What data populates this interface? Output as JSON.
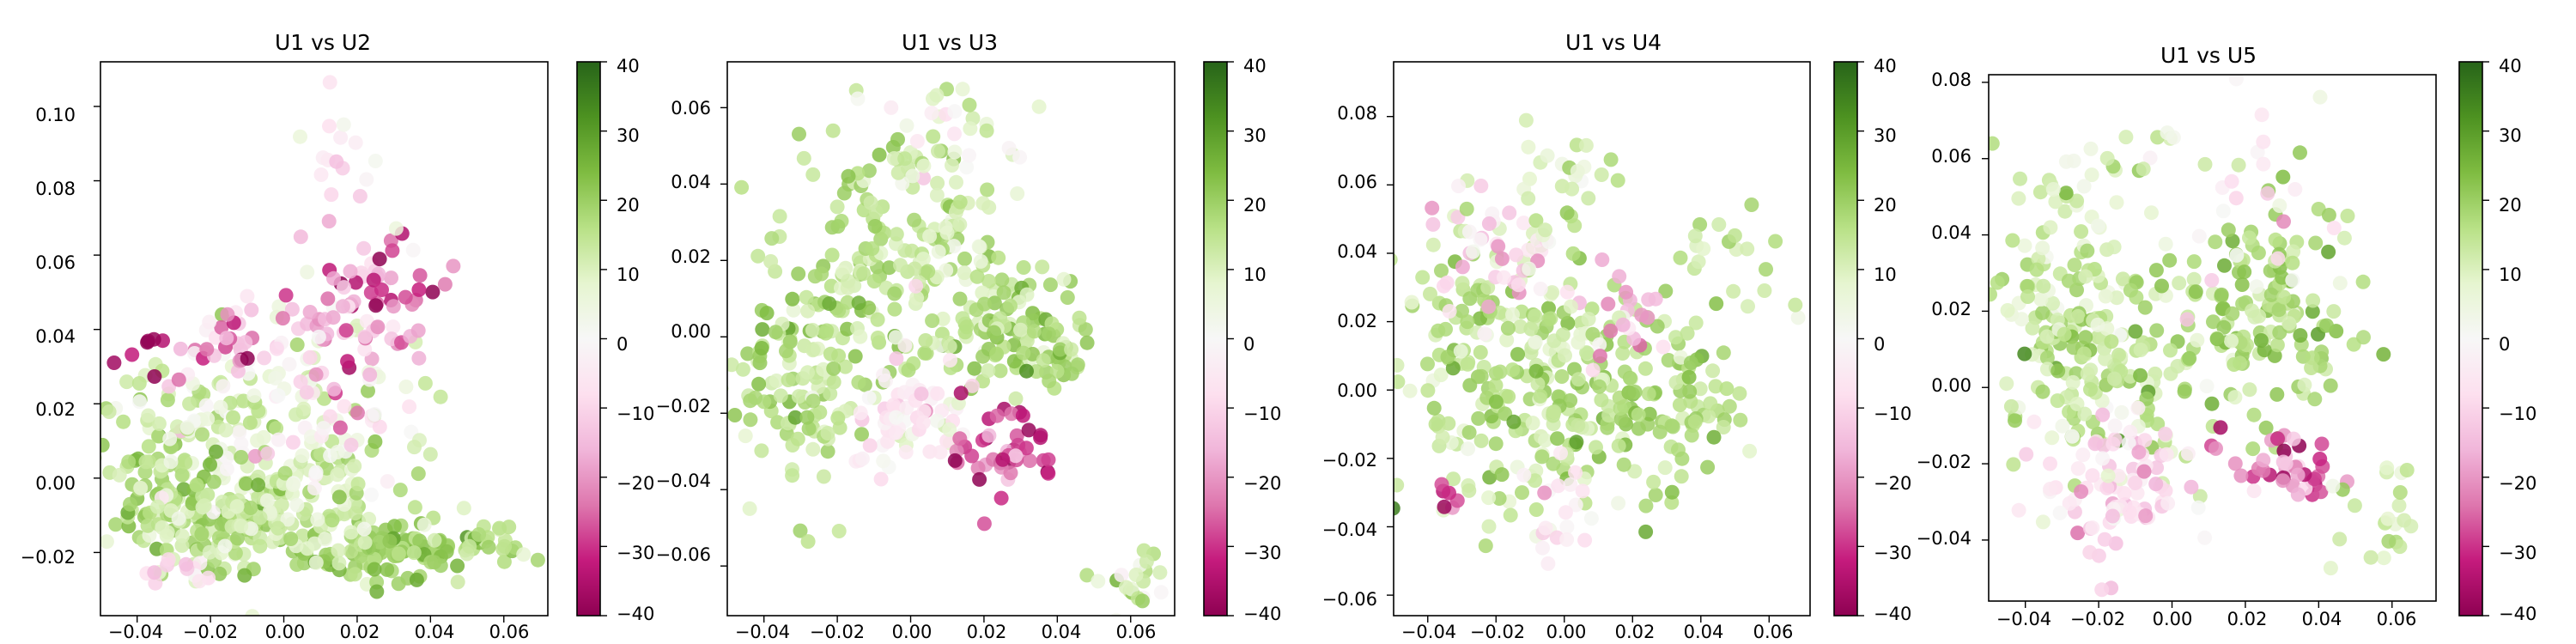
{
  "figure": {
    "colormap": "PiYG",
    "colormap_stops": [
      "#8e0152",
      "#c51b7d",
      "#de77ae",
      "#f1b6da",
      "#fde0ef",
      "#f7f7f7",
      "#e6f5d0",
      "#b8e186",
      "#7fbc41",
      "#4d9221",
      "#276419"
    ],
    "point_alpha": 0.85
  },
  "chart_data": [
    {
      "type": "scatter",
      "title": "U1 vs U2",
      "xlabel": "",
      "ylabel": "",
      "xlim": [
        -0.05,
        0.072
      ],
      "ylim": [
        -0.037,
        0.112
      ],
      "xticks": [
        -0.04,
        -0.02,
        0.0,
        0.02,
        0.04,
        0.06
      ],
      "xtick_labels": [
        "−0.04",
        "−0.02",
        "0.00",
        "0.02",
        "0.04",
        "0.06"
      ],
      "yticks": [
        -0.02,
        0.0,
        0.02,
        0.04,
        0.06,
        0.08,
        0.1
      ],
      "ytick_labels": [
        "−0.02",
        "0.00",
        "0.02",
        "0.04",
        "0.06",
        "0.08",
        "0.10"
      ],
      "colorbar": {
        "range": [
          -40,
          40
        ],
        "ticks": [
          40,
          30,
          20,
          10,
          0,
          -10,
          -20,
          -30,
          -40
        ],
        "tick_labels": [
          "40",
          "30",
          "20",
          "10",
          "0",
          "−10",
          "−20",
          "−30",
          "−40"
        ]
      },
      "clusters": [
        {
          "x": -0.02,
          "y": -0.012,
          "sx": 0.013,
          "sy": 0.006,
          "c": 16,
          "sc": 5,
          "n": 130
        },
        {
          "x": 0.03,
          "y": -0.02,
          "sx": 0.012,
          "sy": 0.004,
          "c": 20,
          "sc": 4,
          "n": 110
        },
        {
          "x": 0.0,
          "y": -0.005,
          "sx": 0.015,
          "sy": 0.008,
          "c": 12,
          "sc": 5,
          "n": 110
        },
        {
          "x": 0.055,
          "y": -0.017,
          "sx": 0.006,
          "sy": 0.003,
          "c": 14,
          "sc": 4,
          "n": 20
        },
        {
          "x": -0.035,
          "y": 0.005,
          "sx": 0.008,
          "sy": 0.012,
          "c": 15,
          "sc": 6,
          "n": 60
        },
        {
          "x": -0.02,
          "y": 0.015,
          "sx": 0.01,
          "sy": 0.012,
          "c": 8,
          "sc": 8,
          "n": 70
        },
        {
          "x": 0.01,
          "y": 0.02,
          "sx": 0.014,
          "sy": 0.015,
          "c": 0,
          "sc": 12,
          "n": 110
        },
        {
          "x": 0.02,
          "y": 0.045,
          "sx": 0.01,
          "sy": 0.01,
          "c": -20,
          "sc": 9,
          "n": 60
        },
        {
          "x": -0.015,
          "y": 0.035,
          "sx": 0.008,
          "sy": 0.006,
          "c": -18,
          "sc": 10,
          "n": 30
        },
        {
          "x": -0.035,
          "y": 0.032,
          "sx": 0.004,
          "sy": 0.004,
          "c": -35,
          "sc": 5,
          "n": 8
        },
        {
          "x": 0.035,
          "y": 0.055,
          "sx": 0.006,
          "sy": 0.006,
          "c": -30,
          "sc": 6,
          "n": 12
        },
        {
          "x": 0.015,
          "y": 0.08,
          "sx": 0.006,
          "sy": 0.012,
          "c": -5,
          "sc": 6,
          "n": 20
        },
        {
          "x": -0.03,
          "y": -0.025,
          "sx": 0.006,
          "sy": 0.002,
          "c": -8,
          "sc": 4,
          "n": 12
        }
      ]
    },
    {
      "type": "scatter",
      "title": "U1 vs U3",
      "xlabel": "",
      "ylabel": "",
      "xlim": [
        -0.05,
        0.072
      ],
      "ylim": [
        -0.073,
        0.072
      ],
      "xticks": [
        -0.04,
        -0.02,
        0.0,
        0.02,
        0.04,
        0.06
      ],
      "xtick_labels": [
        "−0.04",
        "−0.02",
        "0.00",
        "0.02",
        "0.04",
        "0.06"
      ],
      "yticks": [
        -0.06,
        -0.04,
        -0.02,
        0.0,
        0.02,
        0.04,
        0.06
      ],
      "ytick_labels": [
        "−0.06",
        "−0.04",
        "−0.02",
        "0.00",
        "0.02",
        "0.04",
        "0.06"
      ],
      "colorbar": {
        "range": [
          -40,
          40
        ],
        "ticks": [
          40,
          30,
          20,
          10,
          0,
          -10,
          -20,
          -30,
          -40
        ],
        "tick_labels": [
          "40",
          "30",
          "20",
          "10",
          "0",
          "−10",
          "−20",
          "−30",
          "−40"
        ]
      },
      "clusters": [
        {
          "x": -0.03,
          "y": -0.015,
          "sx": 0.01,
          "sy": 0.015,
          "c": 15,
          "sc": 5,
          "n": 120
        },
        {
          "x": -0.01,
          "y": 0.02,
          "sx": 0.012,
          "sy": 0.015,
          "c": 16,
          "sc": 5,
          "n": 130
        },
        {
          "x": 0.015,
          "y": 0.02,
          "sx": 0.01,
          "sy": 0.02,
          "c": 10,
          "sc": 6,
          "n": 90
        },
        {
          "x": 0.03,
          "y": 0.0,
          "sx": 0.012,
          "sy": 0.008,
          "c": 18,
          "sc": 5,
          "n": 100
        },
        {
          "x": 0.0,
          "y": -0.02,
          "sx": 0.008,
          "sy": 0.008,
          "c": -5,
          "sc": 5,
          "n": 60
        },
        {
          "x": 0.025,
          "y": -0.03,
          "sx": 0.008,
          "sy": 0.007,
          "c": -28,
          "sc": 8,
          "n": 45
        },
        {
          "x": 0.06,
          "y": -0.063,
          "sx": 0.005,
          "sy": 0.004,
          "c": 10,
          "sc": 6,
          "n": 22
        },
        {
          "x": 0.005,
          "y": 0.05,
          "sx": 0.008,
          "sy": 0.008,
          "c": 5,
          "sc": 6,
          "n": 25
        }
      ]
    },
    {
      "type": "scatter",
      "title": "U1 vs U4",
      "xlabel": "",
      "ylabel": "",
      "xlim": [
        -0.05,
        0.072
      ],
      "ylim": [
        -0.066,
        0.096
      ],
      "xticks": [
        -0.04,
        -0.02,
        0.0,
        0.02,
        0.04,
        0.06
      ],
      "xtick_labels": [
        "−0.04",
        "−0.02",
        "0.00",
        "0.02",
        "0.04",
        "0.06"
      ],
      "yticks": [
        -0.06,
        -0.04,
        -0.02,
        0.0,
        0.02,
        0.04,
        0.06,
        0.08
      ],
      "ytick_labels": [
        "−0.06",
        "−0.04",
        "−0.02",
        "0.00",
        "0.02",
        "0.04",
        "0.06",
        "0.08"
      ],
      "colorbar": {
        "range": [
          -40,
          40
        ],
        "ticks": [
          40,
          30,
          20,
          10,
          0,
          -10,
          -20,
          -30,
          -40
        ],
        "tick_labels": [
          "40",
          "30",
          "20",
          "10",
          "0",
          "−10",
          "−20",
          "−30",
          "−40"
        ]
      },
      "clusters": [
        {
          "x": -0.025,
          "y": 0.005,
          "sx": 0.012,
          "sy": 0.02,
          "c": 14,
          "sc": 6,
          "n": 140
        },
        {
          "x": 0.0,
          "y": 0.0,
          "sx": 0.01,
          "sy": 0.02,
          "c": 15,
          "sc": 6,
          "n": 120
        },
        {
          "x": 0.03,
          "y": 0.0,
          "sx": 0.01,
          "sy": 0.015,
          "c": 18,
          "sc": 4,
          "n": 100
        },
        {
          "x": -0.02,
          "y": 0.04,
          "sx": 0.01,
          "sy": 0.008,
          "c": -10,
          "sc": 8,
          "n": 40
        },
        {
          "x": 0.015,
          "y": 0.025,
          "sx": 0.008,
          "sy": 0.008,
          "c": -15,
          "sc": 10,
          "n": 25
        },
        {
          "x": 0.0,
          "y": -0.035,
          "sx": 0.005,
          "sy": 0.008,
          "c": -5,
          "sc": 5,
          "n": 20
        },
        {
          "x": -0.035,
          "y": -0.03,
          "sx": 0.004,
          "sy": 0.003,
          "c": -30,
          "sc": 5,
          "n": 6
        },
        {
          "x": 0.05,
          "y": 0.035,
          "sx": 0.008,
          "sy": 0.01,
          "c": 12,
          "sc": 4,
          "n": 20
        },
        {
          "x": 0.0,
          "y": 0.06,
          "sx": 0.01,
          "sy": 0.008,
          "c": 10,
          "sc": 6,
          "n": 25
        }
      ]
    },
    {
      "type": "scatter",
      "title": "U1 vs U5",
      "xlabel": "",
      "ylabel": "",
      "xlim": [
        -0.05,
        0.072
      ],
      "ylim": [
        -0.056,
        0.082
      ],
      "xticks": [
        -0.04,
        -0.02,
        0.0,
        0.02,
        0.04,
        0.06
      ],
      "xtick_labels": [
        "−0.04",
        "−0.02",
        "0.00",
        "0.02",
        "0.04",
        "0.06"
      ],
      "yticks": [
        -0.04,
        -0.02,
        0.0,
        0.02,
        0.04,
        0.06,
        0.08
      ],
      "ytick_labels": [
        "−0.04",
        "−0.02",
        "0.00",
        "0.02",
        "0.04",
        "0.06",
        "0.08"
      ],
      "colorbar": {
        "range": [
          -40,
          40
        ],
        "ticks": [
          40,
          30,
          20,
          10,
          0,
          -10,
          -20,
          -30,
          -40
        ],
        "tick_labels": [
          "40",
          "30",
          "20",
          "10",
          "0",
          "−10",
          "−20",
          "−30",
          "−40"
        ]
      },
      "clusters": [
        {
          "x": -0.03,
          "y": 0.015,
          "sx": 0.01,
          "sy": 0.015,
          "c": 14,
          "sc": 6,
          "n": 110
        },
        {
          "x": -0.01,
          "y": 0.005,
          "sx": 0.012,
          "sy": 0.012,
          "c": 14,
          "sc": 6,
          "n": 100
        },
        {
          "x": 0.025,
          "y": 0.02,
          "sx": 0.012,
          "sy": 0.015,
          "c": 17,
          "sc": 5,
          "n": 140
        },
        {
          "x": -0.015,
          "y": -0.025,
          "sx": 0.01,
          "sy": 0.01,
          "c": -8,
          "sc": 6,
          "n": 90
        },
        {
          "x": 0.03,
          "y": -0.022,
          "sx": 0.008,
          "sy": 0.005,
          "c": -25,
          "sc": 10,
          "n": 40
        },
        {
          "x": 0.055,
          "y": -0.035,
          "sx": 0.006,
          "sy": 0.007,
          "c": 12,
          "sc": 5,
          "n": 22
        },
        {
          "x": -0.02,
          "y": 0.055,
          "sx": 0.012,
          "sy": 0.008,
          "c": 10,
          "sc": 6,
          "n": 30
        },
        {
          "x": 0.02,
          "y": 0.05,
          "sx": 0.01,
          "sy": 0.012,
          "c": -5,
          "sc": 8,
          "n": 25
        }
      ]
    }
  ]
}
